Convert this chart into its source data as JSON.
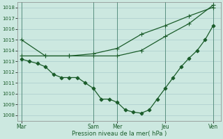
{
  "xlabel": "Pression niveau de la mer( hPa )",
  "background_color": "#cce8e0",
  "grid_color": "#aacccc",
  "line_color": "#1a5c2a",
  "ylim": [
    1007.5,
    1018.5
  ],
  "yticks": [
    1008,
    1009,
    1010,
    1011,
    1012,
    1013,
    1014,
    1015,
    1016,
    1017,
    1018
  ],
  "xtick_labels": [
    "Mar",
    "Sam",
    "Mer",
    "Jeu",
    "Ven"
  ],
  "xtick_positions": [
    0,
    9,
    12,
    18,
    24
  ],
  "xlim": [
    -0.5,
    25.0
  ],
  "series": [
    {
      "x": [
        0,
        1,
        2,
        3,
        4,
        5,
        6,
        7,
        8,
        9,
        10,
        11,
        12,
        13,
        14,
        15,
        16,
        17,
        18,
        19,
        20,
        21,
        22,
        23,
        24
      ],
      "y": [
        1013.2,
        1013.0,
        1012.8,
        1012.5,
        1011.8,
        1011.5,
        1011.5,
        1011.5,
        1011.0,
        1010.5,
        1009.5,
        1009.5,
        1009.2,
        1008.5,
        1008.3,
        1008.2,
        1008.5,
        1009.5,
        1010.5,
        1011.5,
        1012.5,
        1013.3,
        1014.0,
        1015.0,
        1016.3
      ],
      "marker": "D",
      "markersize": 2.5,
      "linewidth": 0.9
    },
    {
      "x": [
        0,
        3,
        6,
        9,
        12,
        15,
        18,
        21,
        24
      ],
      "y": [
        1013.5,
        1013.5,
        1013.5,
        1013.5,
        1013.5,
        1014.0,
        1015.3,
        1016.5,
        1018.2
      ],
      "marker": "+",
      "markersize": 4,
      "linewidth": 0.9
    },
    {
      "x": [
        0,
        3,
        6,
        9,
        12,
        15,
        18,
        21,
        24
      ],
      "y": [
        1015.0,
        1013.5,
        1013.5,
        1013.7,
        1014.2,
        1015.5,
        1016.3,
        1017.2,
        1018.0
      ],
      "marker": "+",
      "markersize": 4,
      "linewidth": 0.9
    }
  ]
}
